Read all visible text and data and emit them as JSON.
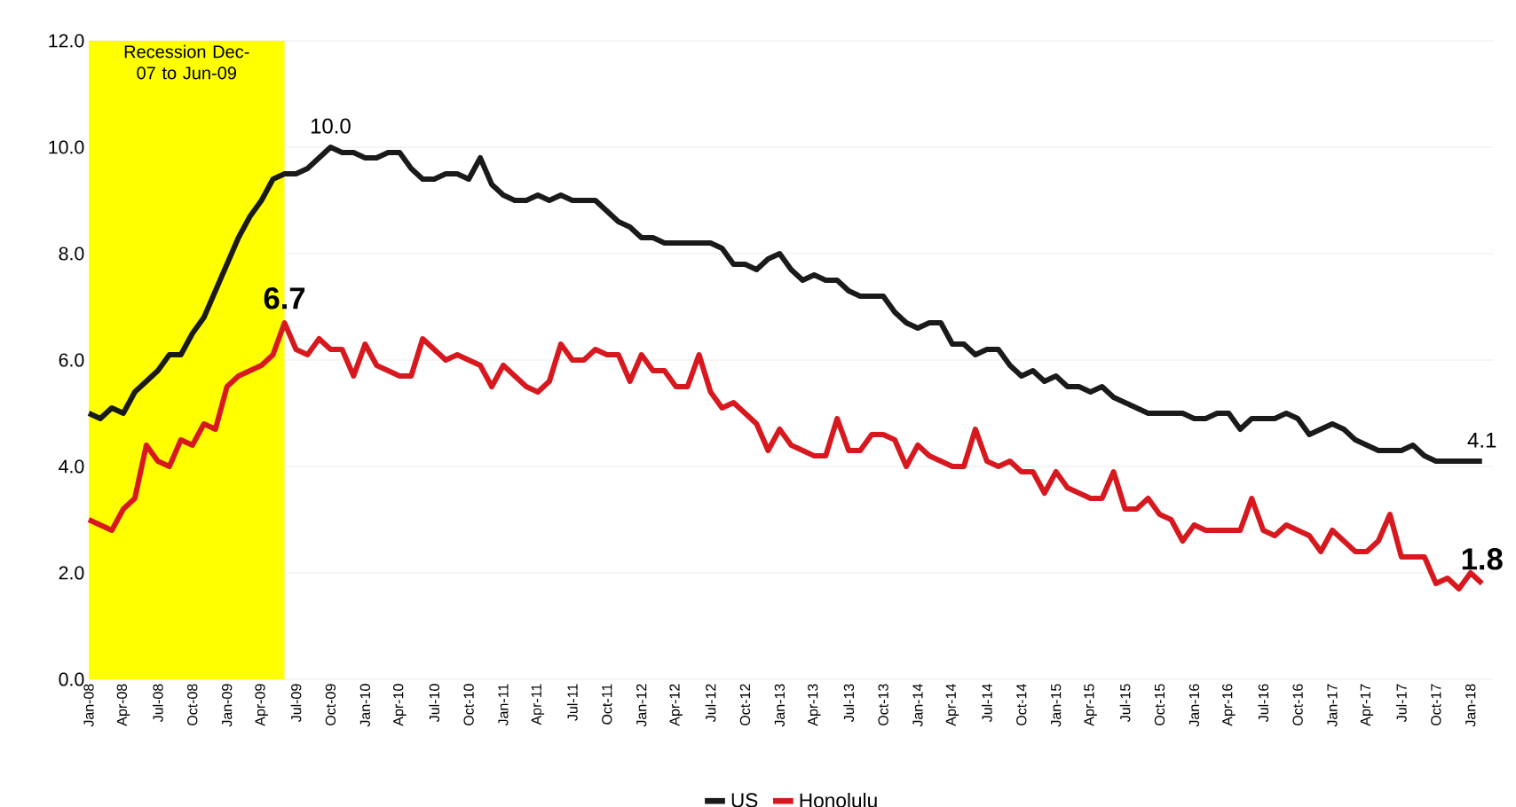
{
  "chart_data": {
    "type": "line",
    "x": [
      "2008-01",
      "2008-02",
      "2008-03",
      "2008-04",
      "2008-05",
      "2008-06",
      "2008-07",
      "2008-08",
      "2008-09",
      "2008-10",
      "2008-11",
      "2008-12",
      "2009-01",
      "2009-02",
      "2009-03",
      "2009-04",
      "2009-05",
      "2009-06",
      "2009-07",
      "2009-08",
      "2009-09",
      "2009-10",
      "2009-11",
      "2009-12",
      "2010-01",
      "2010-02",
      "2010-03",
      "2010-04",
      "2010-05",
      "2010-06",
      "2010-07",
      "2010-08",
      "2010-09",
      "2010-10",
      "2010-11",
      "2010-12",
      "2011-01",
      "2011-02",
      "2011-03",
      "2011-04",
      "2011-05",
      "2011-06",
      "2011-07",
      "2011-08",
      "2011-09",
      "2011-10",
      "2011-11",
      "2011-12",
      "2012-01",
      "2012-02",
      "2012-03",
      "2012-04",
      "2012-05",
      "2012-06",
      "2012-07",
      "2012-08",
      "2012-09",
      "2012-10",
      "2012-11",
      "2012-12",
      "2013-01",
      "2013-02",
      "2013-03",
      "2013-04",
      "2013-05",
      "2013-06",
      "2013-07",
      "2013-08",
      "2013-09",
      "2013-10",
      "2013-11",
      "2013-12",
      "2014-01",
      "2014-02",
      "2014-03",
      "2014-04",
      "2014-05",
      "2014-06",
      "2014-07",
      "2014-08",
      "2014-09",
      "2014-10",
      "2014-11",
      "2014-12",
      "2015-01",
      "2015-02",
      "2015-03",
      "2015-04",
      "2015-05",
      "2015-06",
      "2015-07",
      "2015-08",
      "2015-09",
      "2015-10",
      "2015-11",
      "2015-12",
      "2016-01",
      "2016-02",
      "2016-03",
      "2016-04",
      "2016-05",
      "2016-06",
      "2016-07",
      "2016-08",
      "2016-09",
      "2016-10",
      "2016-11",
      "2016-12",
      "2017-01",
      "2017-02",
      "2017-03",
      "2017-04",
      "2017-05",
      "2017-06",
      "2017-07",
      "2017-08",
      "2017-09",
      "2017-10",
      "2017-11",
      "2017-12",
      "2018-01",
      "2018-02"
    ],
    "series": [
      {
        "name": "US",
        "color": "#1a1a1a",
        "values": [
          5.0,
          4.9,
          5.1,
          5.0,
          5.4,
          5.6,
          5.8,
          6.1,
          6.1,
          6.5,
          6.8,
          7.3,
          7.8,
          8.3,
          8.7,
          9.0,
          9.4,
          9.5,
          9.5,
          9.6,
          9.8,
          10.0,
          9.9,
          9.9,
          9.8,
          9.8,
          9.9,
          9.9,
          9.6,
          9.4,
          9.4,
          9.5,
          9.5,
          9.4,
          9.8,
          9.3,
          9.1,
          9.0,
          9.0,
          9.1,
          9.0,
          9.1,
          9.0,
          9.0,
          9.0,
          8.8,
          8.6,
          8.5,
          8.3,
          8.3,
          8.2,
          8.2,
          8.2,
          8.2,
          8.2,
          8.1,
          7.8,
          7.8,
          7.7,
          7.9,
          8.0,
          7.7,
          7.5,
          7.6,
          7.5,
          7.5,
          7.3,
          7.2,
          7.2,
          7.2,
          6.9,
          6.7,
          6.6,
          6.7,
          6.7,
          6.3,
          6.3,
          6.1,
          6.2,
          6.2,
          5.9,
          5.7,
          5.8,
          5.6,
          5.7,
          5.5,
          5.5,
          5.4,
          5.5,
          5.3,
          5.2,
          5.1,
          5.0,
          5.0,
          5.0,
          5.0,
          4.9,
          4.9,
          5.0,
          5.0,
          4.7,
          4.9,
          4.9,
          4.9,
          5.0,
          4.9,
          4.6,
          4.7,
          4.8,
          4.7,
          4.5,
          4.4,
          4.3,
          4.3,
          4.3,
          4.4,
          4.2,
          4.1,
          4.1,
          4.1,
          4.1,
          4.1
        ]
      },
      {
        "name": "Honolulu",
        "color": "#d7191f",
        "values": [
          3.0,
          2.9,
          2.8,
          3.2,
          3.4,
          4.4,
          4.1,
          4.0,
          4.5,
          4.4,
          4.8,
          4.7,
          5.5,
          5.7,
          5.8,
          5.9,
          6.1,
          6.7,
          6.2,
          6.1,
          6.4,
          6.2,
          6.2,
          5.7,
          6.3,
          5.9,
          5.8,
          5.7,
          5.7,
          6.4,
          6.2,
          6.0,
          6.1,
          6.0,
          5.9,
          5.5,
          5.9,
          5.7,
          5.5,
          5.4,
          5.6,
          6.3,
          6.0,
          6.0,
          6.2,
          6.1,
          6.1,
          5.6,
          6.1,
          5.8,
          5.8,
          5.5,
          5.5,
          6.1,
          5.4,
          5.1,
          5.2,
          5.0,
          4.8,
          4.3,
          4.7,
          4.4,
          4.3,
          4.2,
          4.2,
          4.9,
          4.3,
          4.3,
          4.6,
          4.6,
          4.5,
          4.0,
          4.4,
          4.2,
          4.1,
          4.0,
          4.0,
          4.7,
          4.1,
          4.0,
          4.1,
          3.9,
          3.9,
          3.5,
          3.9,
          3.6,
          3.5,
          3.4,
          3.4,
          3.9,
          3.2,
          3.2,
          3.4,
          3.1,
          3.0,
          2.6,
          2.9,
          2.8,
          2.8,
          2.8,
          2.8,
          3.4,
          2.8,
          2.7,
          2.9,
          2.8,
          2.7,
          2.4,
          2.8,
          2.6,
          2.4,
          2.4,
          2.6,
          3.1,
          2.3,
          2.3,
          2.3,
          1.8,
          1.9,
          1.7,
          2.0,
          1.8
        ]
      }
    ],
    "xlim": [
      "2008-01",
      "2018-03"
    ],
    "xticks": [
      {
        "value": "2008-01",
        "label": "Jan-08"
      },
      {
        "value": "2008-04",
        "label": "Apr-08"
      },
      {
        "value": "2008-07",
        "label": "Jul-08"
      },
      {
        "value": "2008-10",
        "label": "Oct-08"
      },
      {
        "value": "2009-01",
        "label": "Jan-09"
      },
      {
        "value": "2009-04",
        "label": "Apr-09"
      },
      {
        "value": "2009-07",
        "label": "Jul-09"
      },
      {
        "value": "2009-10",
        "label": "Oct-09"
      },
      {
        "value": "2010-01",
        "label": "Jan-10"
      },
      {
        "value": "2010-04",
        "label": "Apr-10"
      },
      {
        "value": "2010-07",
        "label": "Jul-10"
      },
      {
        "value": "2010-10",
        "label": "Oct-10"
      },
      {
        "value": "2011-01",
        "label": "Jan-11"
      },
      {
        "value": "2011-04",
        "label": "Apr-11"
      },
      {
        "value": "2011-07",
        "label": "Jul-11"
      },
      {
        "value": "2011-10",
        "label": "Oct-11"
      },
      {
        "value": "2012-01",
        "label": "Jan-12"
      },
      {
        "value": "2012-04",
        "label": "Apr-12"
      },
      {
        "value": "2012-07",
        "label": "Jul-12"
      },
      {
        "value": "2012-10",
        "label": "Oct-12"
      },
      {
        "value": "2013-01",
        "label": "Jan-13"
      },
      {
        "value": "2013-04",
        "label": "Apr-13"
      },
      {
        "value": "2013-07",
        "label": "Jul-13"
      },
      {
        "value": "2013-10",
        "label": "Oct-13"
      },
      {
        "value": "2014-01",
        "label": "Jan-14"
      },
      {
        "value": "2014-04",
        "label": "Apr-14"
      },
      {
        "value": "2014-07",
        "label": "Jul-14"
      },
      {
        "value": "2014-10",
        "label": "Oct-14"
      },
      {
        "value": "2015-01",
        "label": "Jan-15"
      },
      {
        "value": "2015-04",
        "label": "Apr-15"
      },
      {
        "value": "2015-07",
        "label": "Jul-15"
      },
      {
        "value": "2015-10",
        "label": "Oct-15"
      },
      {
        "value": "2016-01",
        "label": "Jan-16"
      },
      {
        "value": "2016-04",
        "label": "Apr-16"
      },
      {
        "value": "2016-07",
        "label": "Jul-16"
      },
      {
        "value": "2016-10",
        "label": "Oct-16"
      },
      {
        "value": "2017-01",
        "label": "Jan-17"
      },
      {
        "value": "2017-04",
        "label": "Apr-17"
      },
      {
        "value": "2017-07",
        "label": "Jul-17"
      },
      {
        "value": "2017-10",
        "label": "Oct-17"
      },
      {
        "value": "2018-01",
        "label": "Jan-18"
      }
    ],
    "ylim": [
      0,
      12
    ],
    "yticks": [
      {
        "value": 0,
        "label": "0.0"
      },
      {
        "value": 2,
        "label": "2.0"
      },
      {
        "value": 4,
        "label": "4.0"
      },
      {
        "value": 6,
        "label": "6.0"
      },
      {
        "value": 8,
        "label": "8.0"
      },
      {
        "value": 10,
        "label": "10.0"
      },
      {
        "value": 12,
        "label": "12.0"
      }
    ],
    "bands": [
      {
        "axis": "x",
        "from": "2008-01",
        "to": "2009-06",
        "label": "Recession Dec-07 to Jun-09",
        "color": "#ffff00"
      }
    ],
    "annotations": [
      {
        "text": "10.0",
        "x": "2009-10",
        "y": 10.0
      },
      {
        "text": "6.7",
        "x": "2009-06",
        "y": 6.7
      },
      {
        "text": "4.1",
        "x": "2018-02",
        "y": 4.1
      },
      {
        "text": "1.8",
        "x": "2018-02",
        "y": 1.8
      }
    ],
    "grid": "y",
    "legend": "bottom",
    "marker": "none",
    "line_style": "solid"
  }
}
